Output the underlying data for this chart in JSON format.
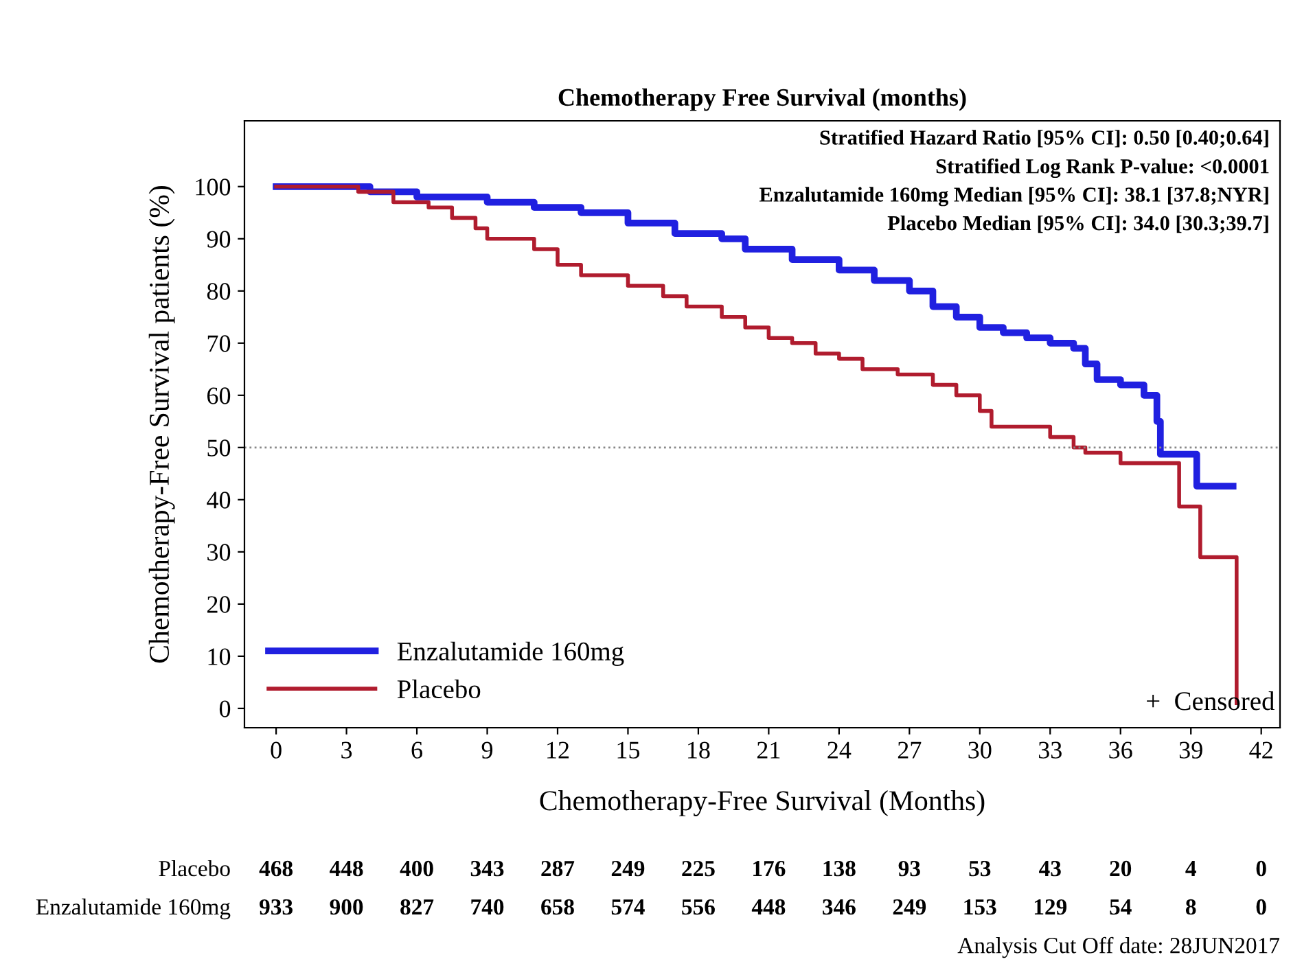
{
  "chart_data": {
    "type": "step",
    "title": "Chemotherapy Free Survival (months)",
    "xlabel": "Chemotherapy-Free Survival (Months)",
    "ylabel": "Chemotherapy-Free Survival patients (%)",
    "series": [
      {
        "name": "Enzalutamide 160mg",
        "color": "#2020e0",
        "x": [
          0,
          4,
          6,
          9,
          11,
          13,
          15,
          17,
          19,
          20,
          22,
          24,
          25.5,
          27,
          28,
          29,
          30,
          31,
          32,
          33,
          34,
          34.5,
          35,
          36,
          37,
          37.55,
          37.7,
          39.25,
          40.8
        ],
        "values": [
          100,
          99,
          98,
          97,
          96,
          95,
          93,
          91,
          90,
          88,
          86,
          84,
          82,
          80,
          77,
          75,
          73,
          72,
          71,
          70,
          69,
          66,
          63,
          62,
          60,
          55,
          48.7,
          42.6,
          42.6
        ]
      },
      {
        "name": "Placebo",
        "color": "#b01c2e",
        "x": [
          0,
          3.5,
          5,
          6.5,
          7.5,
          8.5,
          9,
          11,
          12,
          13,
          15,
          16.5,
          17.5,
          19,
          20,
          21,
          22,
          23,
          24,
          25,
          26.5,
          28,
          29,
          30,
          30.5,
          33,
          34,
          34.5,
          36,
          38.5,
          39.4,
          40.95
        ],
        "values": [
          100,
          99,
          97,
          96,
          94,
          92,
          90,
          88,
          85,
          83,
          81,
          79,
          77,
          75,
          73,
          71,
          70,
          68,
          67,
          65,
          64,
          62,
          60,
          57,
          54,
          52,
          50,
          49,
          47,
          38.7,
          29,
          1
        ]
      }
    ],
    "xlim": [
      -1.35,
      42.8
    ],
    "ylim": [
      -3.7,
      112.6
    ],
    "xticks": [
      0,
      3,
      6,
      9,
      12,
      15,
      18,
      21,
      24,
      27,
      30,
      33,
      36,
      39,
      42
    ],
    "yticks": [
      0,
      10,
      20,
      30,
      40,
      50,
      60,
      70,
      80,
      90,
      100
    ],
    "ref_lines": [
      {
        "axis": "y",
        "value": 50,
        "color": "#888888",
        "line_style": "dotted"
      }
    ],
    "legend": "bottom left",
    "grid": false,
    "marker": "none",
    "line_style": "solid",
    "annotations": [
      "Stratified Hazard Ratio [95% CI]: 0.50 [0.40;0.64]",
      "Stratified Log Rank P-value: <0.0001",
      "Enzalutamide 160mg Median [95% CI]: 38.1 [37.8;NYR]",
      "Placebo Median [95% CI]: 34.0 [30.3;39.7]",
      "+  Censored",
      "Placebo",
      "468",
      "448",
      "400",
      "343",
      "287",
      "249",
      "225",
      "176",
      "138",
      "93",
      "53",
      "43",
      "20",
      "4",
      "0",
      "Enzalutamide 160mg",
      "933",
      "900",
      "827",
      "740",
      "658",
      "574",
      "556",
      "448",
      "346",
      "249",
      "153",
      "129",
      "54",
      "8",
      "0",
      "Analysis Cut Off date: 28JUN2017"
    ]
  }
}
